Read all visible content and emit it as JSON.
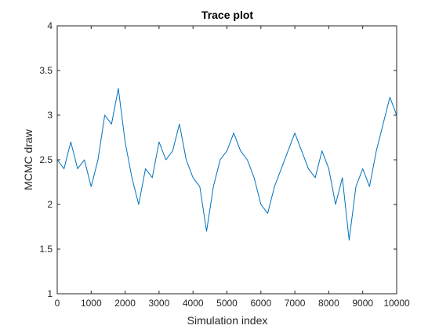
{
  "chart_data": {
    "type": "line",
    "title": "Trace plot",
    "xlabel": "Simulation index",
    "ylabel": "MCMC draw",
    "xlim": [
      0,
      10000
    ],
    "ylim": [
      1,
      4
    ],
    "xticks": [
      0,
      1000,
      2000,
      3000,
      4000,
      5000,
      6000,
      7000,
      8000,
      9000,
      10000
    ],
    "yticks": [
      1,
      1.5,
      2,
      2.5,
      3,
      3.5,
      4
    ],
    "ytick_labels": [
      "1",
      "1.5",
      "2",
      "2.5",
      "3",
      "3.5",
      "4"
    ],
    "grid": false,
    "line_color": "#0072bd",
    "series": [
      {
        "x": [
          0,
          200,
          400,
          600,
          800,
          1000,
          1200,
          1400,
          1600,
          1800,
          2000,
          2200,
          2400,
          2600,
          2800,
          3000,
          3200,
          3400,
          3600,
          3800,
          4000,
          4200,
          4400,
          4600,
          4800,
          5000,
          5200,
          5400,
          5600,
          5800,
          6000,
          6200,
          6400,
          6600,
          6800,
          7000,
          7200,
          7400,
          7600,
          7800,
          8000,
          8200,
          8400,
          8600,
          8800,
          9000,
          9200,
          9400,
          9600,
          9800,
          10000
        ],
        "values": [
          2.5,
          2.4,
          2.7,
          2.4,
          2.5,
          2.2,
          2.5,
          3.0,
          2.9,
          3.3,
          2.7,
          2.3,
          2.0,
          2.4,
          2.3,
          2.7,
          2.5,
          2.6,
          2.9,
          2.5,
          2.3,
          2.2,
          1.7,
          2.2,
          2.5,
          2.6,
          2.8,
          2.6,
          2.5,
          2.3,
          2.0,
          1.9,
          2.2,
          2.4,
          2.6,
          2.8,
          2.6,
          2.4,
          2.3,
          2.6,
          2.4,
          2.0,
          2.3,
          1.6,
          2.2,
          2.4,
          2.2,
          2.6,
          2.9,
          3.2,
          3.0
        ]
      }
    ]
  }
}
